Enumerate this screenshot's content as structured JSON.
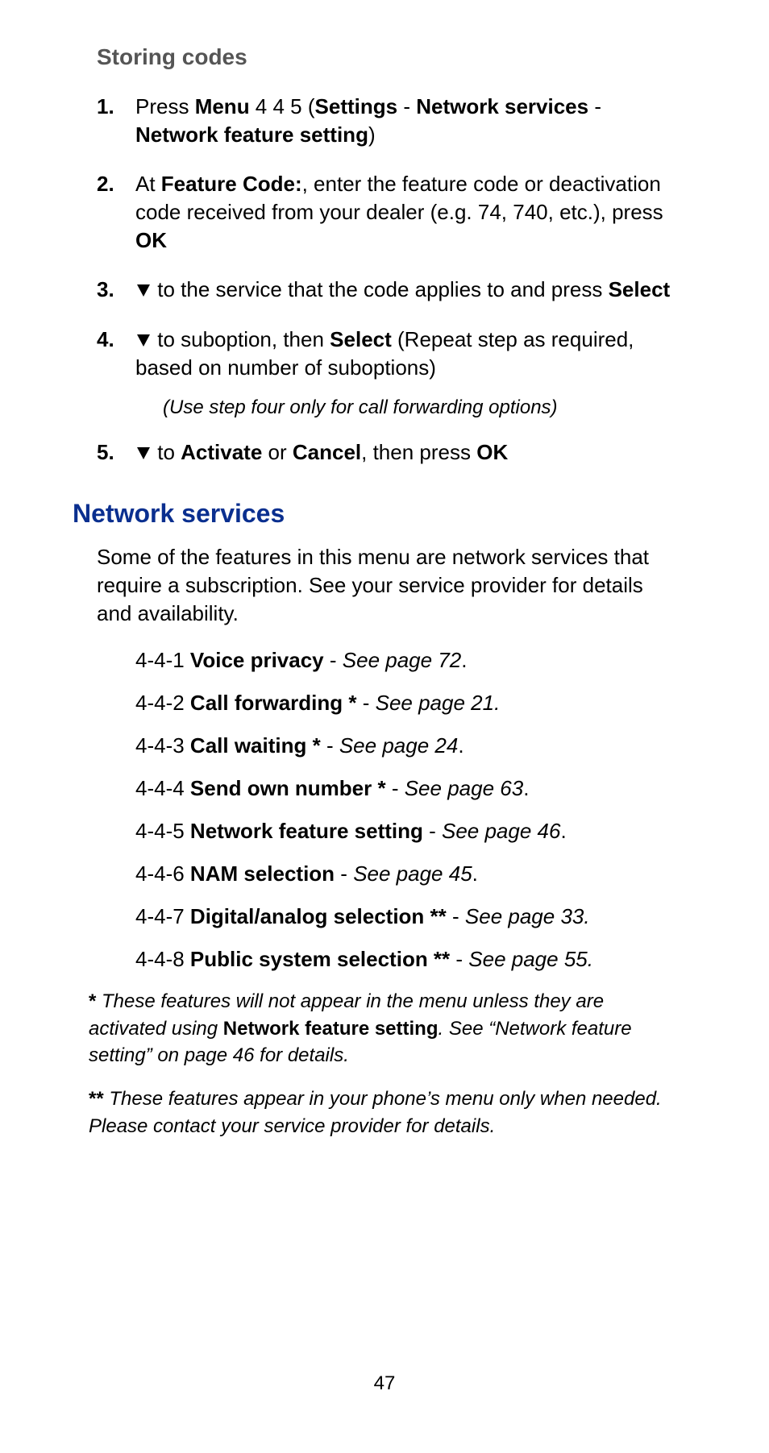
{
  "headings": {
    "storing_codes": "Storing codes",
    "network_services": "Network services"
  },
  "steps": [
    {
      "num": "1.",
      "parts": [
        {
          "t": "Press "
        },
        {
          "t": "Menu",
          "bold": true
        },
        {
          "t": " 4 4 5 ("
        },
        {
          "t": "Settings",
          "bold": true
        },
        {
          "t": " - "
        },
        {
          "t": "Network services",
          "bold": true
        },
        {
          "t": " - "
        },
        {
          "t": "Network feature setting",
          "bold": true
        },
        {
          "t": ")"
        }
      ]
    },
    {
      "num": "2.",
      "parts": [
        {
          "t": "At "
        },
        {
          "t": "Feature Code:",
          "bold": true
        },
        {
          "t": ", enter the feature code or deactivation code received from your dealer (e.g.   74,   740, etc.), press "
        },
        {
          "t": "OK",
          "bold": true
        }
      ]
    },
    {
      "num": "3.",
      "parts": [
        {
          "icon": "down"
        },
        {
          "t": " to the service that the code applies to and press "
        },
        {
          "t": "Select",
          "bold": true
        }
      ]
    },
    {
      "num": "4.",
      "parts": [
        {
          "icon": "down"
        },
        {
          "t": " to suboption, then "
        },
        {
          "t": "Select",
          "bold": true
        },
        {
          "t": " (Repeat step as required, based on number of suboptions)"
        }
      ],
      "after_note": "(Use step four only for call forwarding options)"
    },
    {
      "num": "5.",
      "parts": [
        {
          "icon": "down"
        },
        {
          "t": " to "
        },
        {
          "t": "Activate",
          "bold": true
        },
        {
          "t": " or "
        },
        {
          "t": "Cancel",
          "bold": true
        },
        {
          "t": ", then press "
        },
        {
          "t": "OK",
          "bold": true
        }
      ]
    }
  ],
  "network_services_intro": "Some of the features in this menu are network services that require a subscription. See your service provider for details and availability.",
  "menu_items": [
    {
      "code": "4-4-1",
      "name": "Voice privacy",
      "ref": "See page 72",
      "tail": "."
    },
    {
      "code": "4-4-2",
      "name": "Call forwarding *",
      "ref": "See page 21.",
      "tail": ""
    },
    {
      "code": "4-4-3",
      "name": "Call waiting *",
      "ref": "See page 24",
      "tail": "."
    },
    {
      "code": "4-4-4",
      "name": "Send own number *",
      "ref": "See page 63",
      "tail": "."
    },
    {
      "code": "4-4-5",
      "name": "Network feature setting",
      "ref": "See page 46",
      "tail": "."
    },
    {
      "code": "4-4-6",
      "name": "NAM selection",
      "ref": "See page 45",
      "tail": "."
    },
    {
      "code": "4-4-7",
      "name": "Digital/analog selection **",
      "ref": "See page 33.",
      "tail": ""
    },
    {
      "code": "4-4-8",
      "name": "Public system selection **",
      "ref": "See page 55.",
      "tail": ""
    }
  ],
  "footnotes": {
    "one": {
      "mark": "*",
      "pre": " These features will not appear in the menu unless they are activated using ",
      "strong": "Network feature setting",
      "post": ". See “Network feature setting” on page 46 for details."
    },
    "two": {
      "mark": "**",
      "text": " These features appear in your phone’s menu only when needed. Please contact your service provider for details."
    }
  },
  "page_number": "47",
  "colors": {
    "section_heading": "#0a2f8f",
    "subheading": "#555555",
    "text": "#000000",
    "background": "#ffffff"
  }
}
